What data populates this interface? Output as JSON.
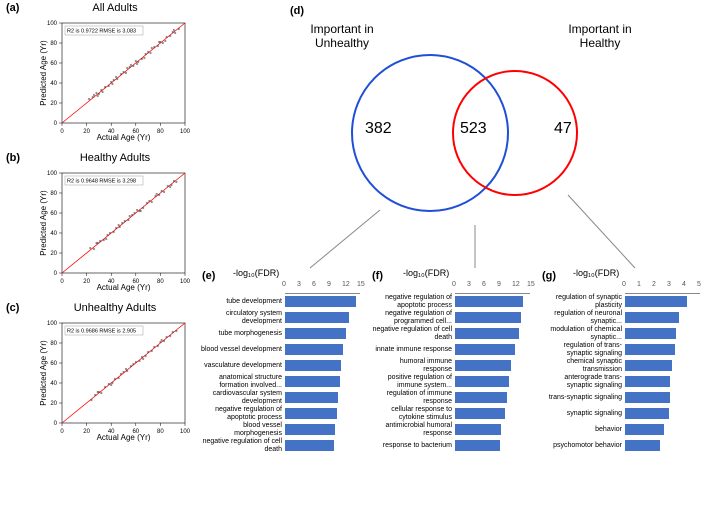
{
  "panels": {
    "a": {
      "label": "(a)",
      "title": "All Adults",
      "stats": "R2 is 0.9722  RMSE is  3.083"
    },
    "b": {
      "label": "(b)",
      "title": "Healthy Adults",
      "stats": "R2 is 0.9648  RMSE is  3.298"
    },
    "c": {
      "label": "(c)",
      "title": "Unhealthy Adults",
      "stats": "R2 is 0.9686  RMSE is  2.905"
    },
    "d": {
      "label": "(d)"
    },
    "e": {
      "label": "(e)"
    },
    "f": {
      "label": "(f)"
    },
    "g": {
      "label": "(g)"
    }
  },
  "scatter": {
    "ylabel": "Predicted Age (Yr)",
    "xlabel": "Actual Age (Yr)",
    "xlim": [
      0,
      100
    ],
    "ylim": [
      0,
      100
    ],
    "ticks": [
      0,
      20,
      40,
      60,
      80,
      100
    ],
    "point_color": "#333333",
    "line_color": "#ff0000",
    "points_a": [
      [
        22,
        24
      ],
      [
        25,
        26
      ],
      [
        28,
        30
      ],
      [
        30,
        29
      ],
      [
        32,
        33
      ],
      [
        35,
        36
      ],
      [
        38,
        37
      ],
      [
        40,
        41
      ],
      [
        42,
        43
      ],
      [
        45,
        44
      ],
      [
        48,
        49
      ],
      [
        50,
        51
      ],
      [
        52,
        50
      ],
      [
        55,
        56
      ],
      [
        58,
        57
      ],
      [
        60,
        62
      ],
      [
        62,
        61
      ],
      [
        65,
        64
      ],
      [
        68,
        69
      ],
      [
        70,
        71
      ],
      [
        72,
        70
      ],
      [
        75,
        76
      ],
      [
        78,
        77
      ],
      [
        80,
        81
      ],
      [
        82,
        80
      ],
      [
        85,
        86
      ],
      [
        88,
        87
      ],
      [
        90,
        91
      ],
      [
        92,
        90
      ],
      [
        95,
        94
      ],
      [
        26,
        28
      ],
      [
        33,
        31
      ],
      [
        44,
        46
      ],
      [
        53,
        55
      ],
      [
        61,
        59
      ],
      [
        73,
        75
      ],
      [
        84,
        82
      ],
      [
        91,
        93
      ],
      [
        29,
        27
      ],
      [
        41,
        39
      ],
      [
        56,
        58
      ],
      [
        67,
        65
      ],
      [
        79,
        81
      ]
    ],
    "points_b": [
      [
        23,
        25
      ],
      [
        26,
        24
      ],
      [
        29,
        30
      ],
      [
        31,
        32
      ],
      [
        34,
        33
      ],
      [
        37,
        38
      ],
      [
        39,
        40
      ],
      [
        42,
        41
      ],
      [
        44,
        45
      ],
      [
        47,
        46
      ],
      [
        49,
        50
      ],
      [
        51,
        52
      ],
      [
        54,
        53
      ],
      [
        57,
        58
      ],
      [
        59,
        60
      ],
      [
        61,
        63
      ],
      [
        63,
        62
      ],
      [
        66,
        65
      ],
      [
        69,
        70
      ],
      [
        71,
        72
      ],
      [
        73,
        71
      ],
      [
        76,
        77
      ],
      [
        79,
        78
      ],
      [
        81,
        82
      ],
      [
        83,
        81
      ],
      [
        86,
        87
      ],
      [
        89,
        88
      ],
      [
        91,
        92
      ],
      [
        93,
        91
      ],
      [
        28,
        30
      ],
      [
        36,
        34
      ],
      [
        46,
        48
      ],
      [
        55,
        57
      ],
      [
        64,
        62
      ],
      [
        77,
        79
      ],
      [
        88,
        86
      ]
    ],
    "points_c": [
      [
        24,
        23
      ],
      [
        27,
        28
      ],
      [
        30,
        31
      ],
      [
        32,
        30
      ],
      [
        35,
        36
      ],
      [
        38,
        39
      ],
      [
        41,
        40
      ],
      [
        43,
        44
      ],
      [
        46,
        45
      ],
      [
        48,
        49
      ],
      [
        50,
        51
      ],
      [
        53,
        52
      ],
      [
        56,
        57
      ],
      [
        58,
        59
      ],
      [
        60,
        61
      ],
      [
        63,
        62
      ],
      [
        65,
        66
      ],
      [
        68,
        67
      ],
      [
        70,
        71
      ],
      [
        73,
        72
      ],
      [
        75,
        76
      ],
      [
        78,
        77
      ],
      [
        80,
        81
      ],
      [
        83,
        82
      ],
      [
        85,
        86
      ],
      [
        88,
        87
      ],
      [
        90,
        91
      ],
      [
        93,
        92
      ],
      [
        29,
        31
      ],
      [
        40,
        38
      ],
      [
        52,
        54
      ],
      [
        66,
        64
      ],
      [
        81,
        83
      ]
    ]
  },
  "venn": {
    "left_label": "Important in\nUnhealthy",
    "right_label": "Important in\nHealthy",
    "left_count": "382",
    "overlap_count": "523",
    "right_count": "47",
    "left_color": "#1f4fd6",
    "right_color": "#ff0000",
    "stroke_width": 2
  },
  "fdr_label": "-log₁₀(FDR)",
  "chart_e": {
    "max": 15,
    "ticks": [
      0,
      3,
      6,
      9,
      12,
      15
    ],
    "bar_color": "#4472c4",
    "items": [
      {
        "label": "tube development",
        "value": 14.2
      },
      {
        "label": "circulatory system development",
        "value": 12.8
      },
      {
        "label": "tube morphogenesis",
        "value": 12.1
      },
      {
        "label": "blood vessel development",
        "value": 11.5
      },
      {
        "label": "vasculature development",
        "value": 11.2
      },
      {
        "label": "anatomical structure formation involved...",
        "value": 10.9
      },
      {
        "label": "cardiovascular system development",
        "value": 10.6
      },
      {
        "label": "negative regulation of apoptotic process",
        "value": 10.3
      },
      {
        "label": "blood vessel morphogenesis",
        "value": 10.0
      },
      {
        "label": "negative regulation of cell death",
        "value": 9.8
      }
    ]
  },
  "chart_f": {
    "max": 15,
    "ticks": [
      0,
      3,
      6,
      9,
      12,
      15
    ],
    "bar_color": "#4472c4",
    "items": [
      {
        "label": "negative regulation of apoptotic process",
        "value": 13.5
      },
      {
        "label": "negative regulation of programmed cell...",
        "value": 13.2
      },
      {
        "label": "negative regulation of cell death",
        "value": 12.8
      },
      {
        "label": "innate immune response",
        "value": 11.9
      },
      {
        "label": "humoral immune response",
        "value": 11.2
      },
      {
        "label": "positive regulation of immune system...",
        "value": 10.8
      },
      {
        "label": "regulation of immune response",
        "value": 10.3
      },
      {
        "label": "cellular response to cytokine stimulus",
        "value": 10.0
      },
      {
        "label": "antimicrobial humoral response",
        "value": 9.2
      },
      {
        "label": "response to bacterium",
        "value": 9.0
      }
    ]
  },
  "chart_g": {
    "max": 5,
    "ticks": [
      0,
      1,
      2,
      3,
      4,
      5
    ],
    "bar_color": "#4472c4",
    "items": [
      {
        "label": "regulation of synaptic plasticity",
        "value": 4.1
      },
      {
        "label": "regulation of neuronal synaptic...",
        "value": 3.6
      },
      {
        "label": "modulation of chemical synaptic...",
        "value": 3.4
      },
      {
        "label": "regulation of trans-synaptic signaling",
        "value": 3.3
      },
      {
        "label": "chemical synaptic transmission",
        "value": 3.1
      },
      {
        "label": "anterograde trans-synaptic signaling",
        "value": 3.0
      },
      {
        "label": "trans-synaptic signaling",
        "value": 3.0
      },
      {
        "label": "synaptic signaling",
        "value": 2.9
      },
      {
        "label": "behavior",
        "value": 2.6
      },
      {
        "label": "psychomotor behavior",
        "value": 2.3
      }
    ]
  }
}
